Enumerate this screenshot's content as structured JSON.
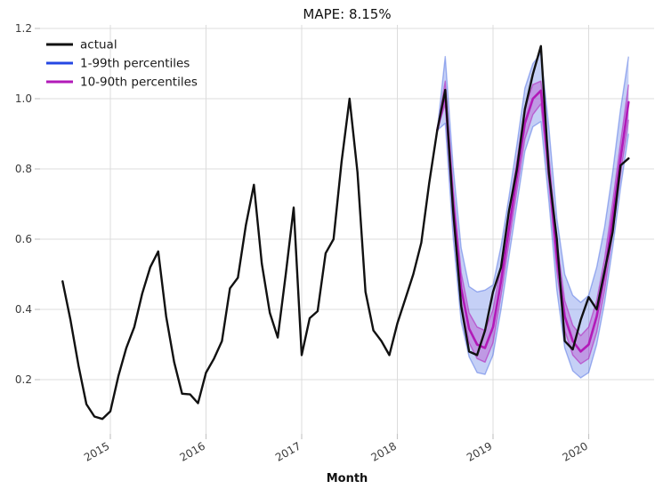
{
  "title": "MAPE: 8.15%",
  "axes": {
    "xlabel": "Month",
    "x_ticks": [
      "2015",
      "2016",
      "2017",
      "2018",
      "2019",
      "2020"
    ],
    "y_ticks": [
      "0.2",
      "0.4",
      "0.6",
      "0.8",
      "1.0",
      "1.2"
    ]
  },
  "legend": {
    "items": [
      {
        "id": "actual",
        "label": "actual",
        "color": "#111111"
      },
      {
        "id": "p1-99",
        "label": "1-99th percentiles",
        "color": "#2547e3"
      },
      {
        "id": "p10-90",
        "label": "10-90th percentiles",
        "color": "#b21ab8"
      }
    ]
  },
  "colors": {
    "background": "#ffffff",
    "grid": "#dcdcdc",
    "tick": "#c6c6c6",
    "tick_label": "#3a3a3a",
    "actual_line": "#111111",
    "blue_line": "#2547e3",
    "blue_fill": "rgba(63,98,225,0.30)",
    "blue_edge": "rgba(63,98,225,0.45)",
    "magenta_line": "#b21ab8",
    "magenta_fill": "rgba(178,26,184,0.30)",
    "magenta_edge": "rgba(178,26,184,0.55)"
  },
  "chart_data": {
    "type": "line",
    "title": "MAPE: 8.15%",
    "xlabel": "Month",
    "ylabel": "",
    "grid": true,
    "legend_position": "upper-left",
    "x_tick_years": [
      2015,
      2016,
      2017,
      2018,
      2019,
      2020
    ],
    "y_ticks": [
      0.2,
      0.4,
      0.6,
      0.8,
      1.0,
      1.2
    ],
    "xlim_years": [
      2014.27,
      2020.68
    ],
    "ylim": [
      0.045,
      1.21
    ],
    "series": [
      {
        "name": "actual",
        "role": "actual",
        "start": "2014-07",
        "monthly_values": [
          0.48,
          0.37,
          0.24,
          0.13,
          0.095,
          0.088,
          0.11,
          0.21,
          0.29,
          0.35,
          0.445,
          0.52,
          0.565,
          0.38,
          0.25,
          0.16,
          0.158,
          0.133,
          0.22,
          0.26,
          0.31,
          0.46,
          0.49,
          0.64,
          0.755,
          0.53,
          0.39,
          0.32,
          0.5,
          0.69,
          0.27,
          0.375,
          0.395,
          0.56,
          0.6,
          0.82,
          1.0,
          0.79,
          0.45,
          0.34,
          0.31,
          0.27,
          0.36,
          0.43,
          0.5,
          0.59,
          0.76,
          0.91,
          1.025,
          0.68,
          0.41,
          0.28,
          0.27,
          0.34,
          0.45,
          0.52,
          0.68,
          0.8,
          0.97,
          1.07,
          1.15,
          0.79,
          0.6,
          0.31,
          0.286,
          0.37,
          0.435,
          0.4,
          0.51,
          0.62,
          0.81,
          0.83
        ]
      },
      {
        "name": "forecast median",
        "role": "forecast-median",
        "start": "2018-06",
        "monthly_values": [
          0.91,
          1.015,
          0.7,
          0.46,
          0.345,
          0.3,
          0.29,
          0.35,
          0.48,
          0.63,
          0.78,
          0.93,
          1.0,
          1.023,
          0.8,
          0.55,
          0.38,
          0.31,
          0.28,
          0.3,
          0.38,
          0.5,
          0.66,
          0.83,
          0.99
        ]
      },
      {
        "name": "90th percentile",
        "role": "p90",
        "start": "2018-06",
        "monthly_values": [
          0.91,
          1.05,
          0.745,
          0.505,
          0.39,
          0.35,
          0.34,
          0.4,
          0.525,
          0.675,
          0.825,
          0.975,
          1.04,
          1.05,
          0.84,
          0.595,
          0.425,
          0.355,
          0.325,
          0.35,
          0.425,
          0.545,
          0.705,
          0.875,
          1.04
        ]
      },
      {
        "name": "10th percentile",
        "role": "p10",
        "start": "2018-06",
        "monthly_values": [
          0.91,
          0.985,
          0.655,
          0.415,
          0.305,
          0.26,
          0.25,
          0.305,
          0.44,
          0.59,
          0.74,
          0.885,
          0.955,
          0.985,
          0.76,
          0.51,
          0.34,
          0.27,
          0.245,
          0.26,
          0.335,
          0.455,
          0.615,
          0.785,
          0.94
        ]
      },
      {
        "name": "99th percentile",
        "role": "p99",
        "start": "2018-06",
        "monthly_values": [
          0.91,
          1.12,
          0.805,
          0.575,
          0.465,
          0.45,
          0.455,
          0.47,
          0.58,
          0.72,
          0.87,
          1.03,
          1.1,
          1.13,
          0.92,
          0.66,
          0.5,
          0.44,
          0.42,
          0.44,
          0.52,
          0.635,
          0.79,
          0.97,
          1.12
        ]
      },
      {
        "name": "1st percentile",
        "role": "p1",
        "start": "2018-06",
        "monthly_values": [
          0.91,
          0.93,
          0.605,
          0.365,
          0.265,
          0.22,
          0.215,
          0.27,
          0.4,
          0.55,
          0.7,
          0.85,
          0.92,
          0.935,
          0.71,
          0.455,
          0.29,
          0.225,
          0.205,
          0.22,
          0.3,
          0.42,
          0.575,
          0.745,
          0.9
        ]
      }
    ]
  }
}
